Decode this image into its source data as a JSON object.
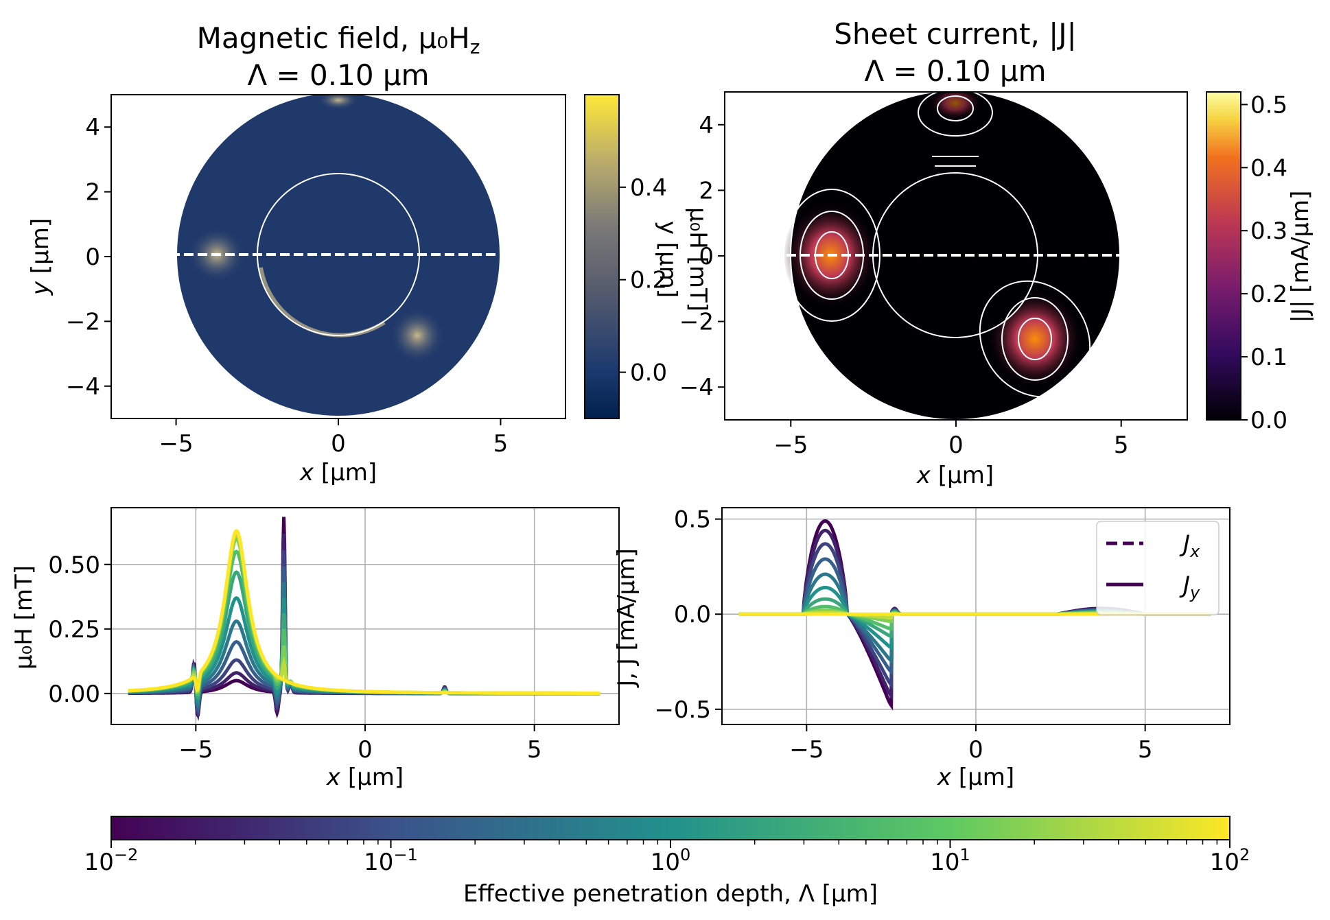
{
  "panels": {
    "field_map": {
      "title_line1": "Magnetic field, μ₀H",
      "title_sub": "z",
      "title_line2": "Λ = 0.10 μm",
      "xlabel": "x",
      "xunit": " [μm]",
      "ylabel": "y",
      "yunit": " [μm]",
      "xticks": [
        "−5",
        "0",
        "5"
      ],
      "yticks": [
        "4",
        "2",
        "0",
        "−2",
        "−4"
      ],
      "colorbar_ticks": [
        "0.4",
        "0.2",
        "0.0"
      ],
      "colorbar_overlap_label1": "y [μm]",
      "colorbar_overlap_label2": "μ₀H [mT]"
    },
    "current_map": {
      "title_line1": "Sheet current, |J|",
      "title_line2": "Λ = 0.10 μm",
      "xlabel": "x",
      "xunit": " [μm]",
      "xticks": [
        "−5",
        "0",
        "5"
      ],
      "yticks": [
        "4",
        "2",
        "0",
        "−2",
        "−4"
      ],
      "colorbar_ticks": [
        "0.5",
        "0.4",
        "0.3",
        "0.2",
        "0.1",
        "0.0"
      ],
      "colorbar_label": "|J| [mA/μm]"
    },
    "field_profile": {
      "ylabel": "μ₀H [mT]",
      "xlabel": "x",
      "xunit": " [μm]",
      "xticks": [
        "−5",
        "0",
        "5"
      ],
      "yticks": [
        "0.50",
        "0.25",
        "0.00"
      ]
    },
    "current_profile": {
      "ylabel": "J, J [mA/μm]",
      "xlabel": "x",
      "xunit": " [μm]",
      "xticks": [
        "−5",
        "0",
        "5"
      ],
      "yticks": [
        "0.5",
        "0.0",
        "−0.5"
      ],
      "legend": [
        "J",
        "J"
      ],
      "legend_subs": [
        "x",
        "y"
      ]
    },
    "lambda_colorbar": {
      "label": "Effective penetration depth, Λ [μm]",
      "ticks": [
        "10",
        "10",
        "10",
        "10",
        "10"
      ],
      "exponents": [
        "−2",
        "−1",
        "0",
        "1",
        "2"
      ]
    }
  },
  "colors": {
    "cividis_low": "#00204c",
    "cividis_high": "#fee838",
    "map_background": "#20396b",
    "inferno_high": "#fcffa4",
    "viridis_low": "#440154",
    "viridis_high": "#fde725"
  },
  "chart_data": [
    {
      "type": "heatmap",
      "name": "field_map",
      "x_range": [
        -7,
        7
      ],
      "y_range": [
        -5,
        5
      ],
      "colorbar_range": [
        -0.1,
        0.6
      ],
      "features": {
        "outer_circle_radius": 5.0,
        "inner_circle_radius": 2.5,
        "hotspots": [
          [
            -3.8,
            0.0
          ],
          [
            2.5,
            -2.5
          ],
          [
            0.0,
            4.6
          ]
        ]
      }
    },
    {
      "type": "heatmap",
      "name": "current_map",
      "x_range": [
        -7,
        7
      ],
      "y_range": [
        -5,
        5
      ],
      "colorbar_range": [
        0.0,
        0.52
      ],
      "vortices": [
        [
          -3.7,
          0.0
        ],
        [
          2.5,
          -2.6
        ],
        [
          0.0,
          4.5
        ]
      ]
    },
    {
      "type": "line",
      "name": "field_profile",
      "x_range": [
        -7.5,
        7.5
      ],
      "y_range": [
        -0.12,
        0.72
      ],
      "lambda_values": [
        0.01,
        0.02,
        0.04,
        0.1,
        0.2,
        0.5,
        1,
        2,
        5,
        10,
        100
      ],
      "peak_heights": [
        0.05,
        0.08,
        0.13,
        0.2,
        0.28,
        0.37,
        0.47,
        0.55,
        0.6,
        0.62,
        0.63
      ],
      "peak_x": -3.8,
      "spike_x": -2.4,
      "spike_height": 0.68
    },
    {
      "type": "line",
      "name": "current_profile",
      "x_range": [
        -7.5,
        7.5
      ],
      "y_range": [
        -0.58,
        0.56
      ],
      "lambda_values": [
        0.01,
        0.02,
        0.04,
        0.1,
        0.2,
        0.5,
        1,
        2,
        5,
        10,
        100
      ],
      "pos_peak": [
        0.49,
        0.44,
        0.37,
        0.29,
        0.21,
        0.14,
        0.08,
        0.04,
        0.02,
        0.01,
        0.0
      ],
      "neg_peak": [
        -0.49,
        -0.44,
        -0.38,
        -0.31,
        -0.25,
        -0.18,
        -0.12,
        -0.08,
        -0.04,
        -0.02,
        0.0
      ],
      "series": [
        {
          "name": "J_x"
        },
        {
          "name": "J_y"
        }
      ]
    }
  ]
}
